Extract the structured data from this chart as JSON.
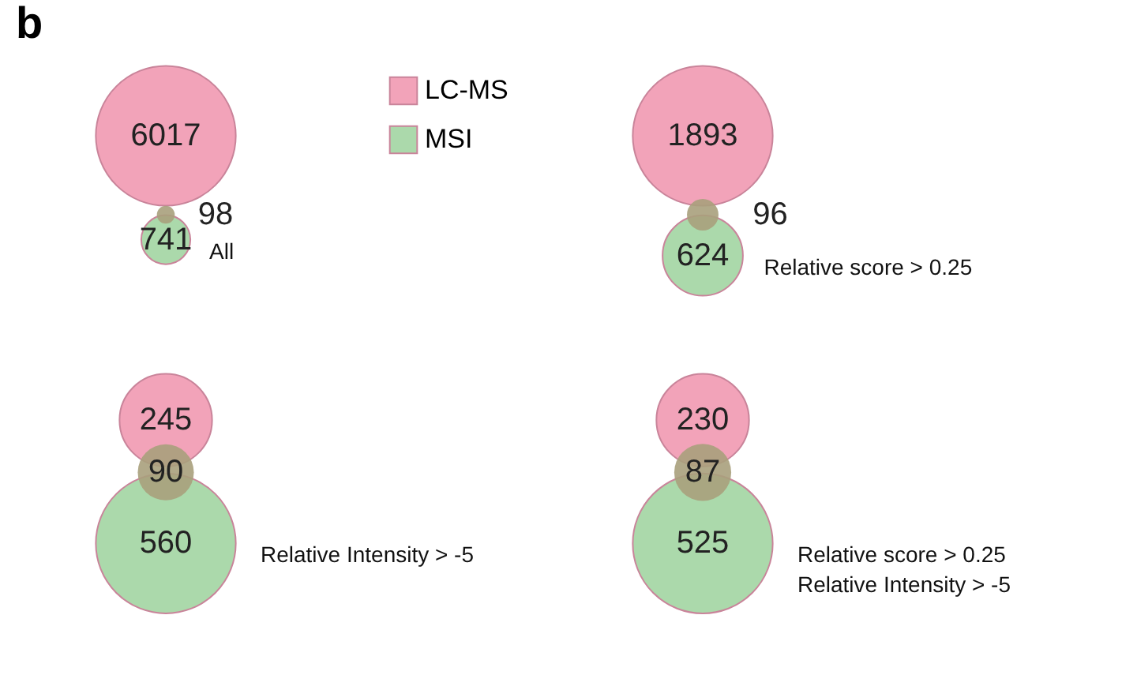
{
  "chart_data": [
    {
      "type": "other",
      "title": "b",
      "categories": [
        "LC-MS",
        null,
        "MSI"
      ],
      "values": [
        6017,
        98,
        741
      ],
      "colors": [
        "#f2a3b9",
        "#a9a07c",
        "#abd9ab"
      ],
      "data_labels": true,
      "annotations": [
        "All"
      ]
    },
    {
      "type": "other",
      "categories": [
        null,
        null,
        null
      ],
      "values": [
        1893,
        96,
        624
      ],
      "colors": [
        "#f2a3b9",
        "#a9a07c",
        "#abd9ab"
      ],
      "data_labels": true,
      "annotations": [
        "Relative score > 0.25"
      ]
    },
    {
      "type": "other",
      "categories": [
        null,
        null,
        null
      ],
      "values": [
        245,
        90,
        560
      ],
      "colors": [
        "#f2a3b9",
        "#a9a07c",
        "#abd9ab"
      ],
      "data_labels": true,
      "annotations": [
        "Relative Intensity > -5"
      ]
    },
    {
      "type": "other",
      "categories": [
        null,
        null,
        null
      ],
      "values": [
        230,
        87,
        525
      ],
      "colors": [
        "#f2a3b9",
        "#a9a07c",
        "#abd9ab"
      ],
      "data_labels": true,
      "annotations": [
        "Relative score > 0.25",
        "Relative Intensity > -5"
      ]
    }
  ]
}
